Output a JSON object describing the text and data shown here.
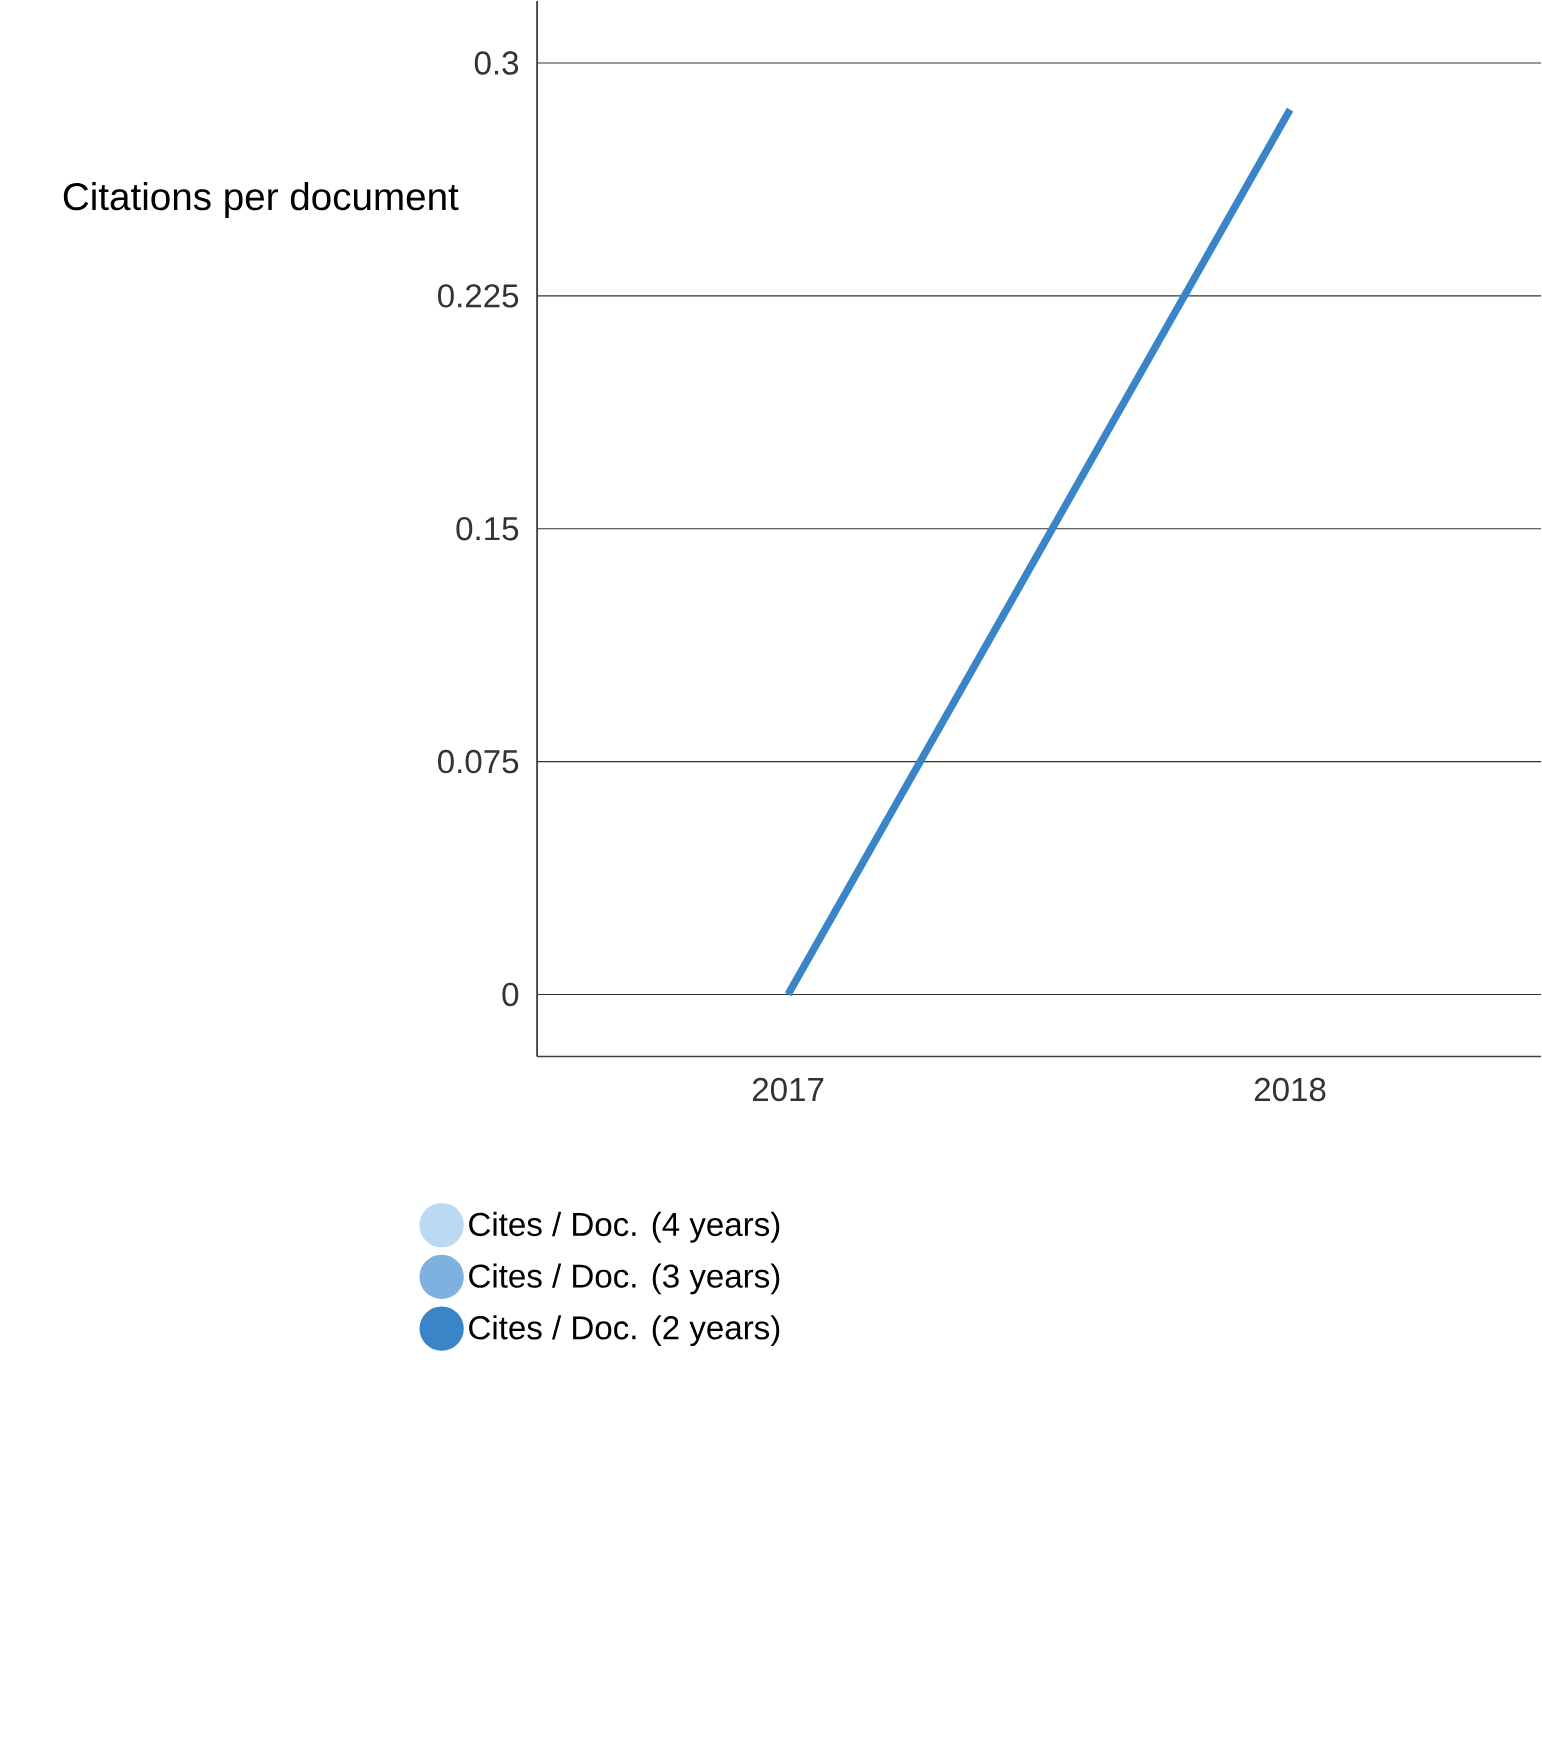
{
  "chart_data": {
    "type": "line",
    "title": "Citations per document",
    "categories": [
      "2017",
      "2018"
    ],
    "series": [
      {
        "name": "Cites / Doc. (4 years)",
        "color": "#bbd9f2",
        "values": [
          null,
          null
        ]
      },
      {
        "name": "Cites / Doc. (3 years)",
        "color": "#7fb1e0",
        "values": [
          null,
          null
        ]
      },
      {
        "name": "Cites / Doc. (2 years)",
        "color": "#3a84c8",
        "values": [
          0,
          0.285
        ]
      }
    ],
    "ylim": [
      -0.02,
      0.32
    ],
    "yticks": [
      0,
      0.075,
      0.15,
      0.225,
      0.3
    ],
    "grid": "y",
    "legend": "bottom left"
  }
}
